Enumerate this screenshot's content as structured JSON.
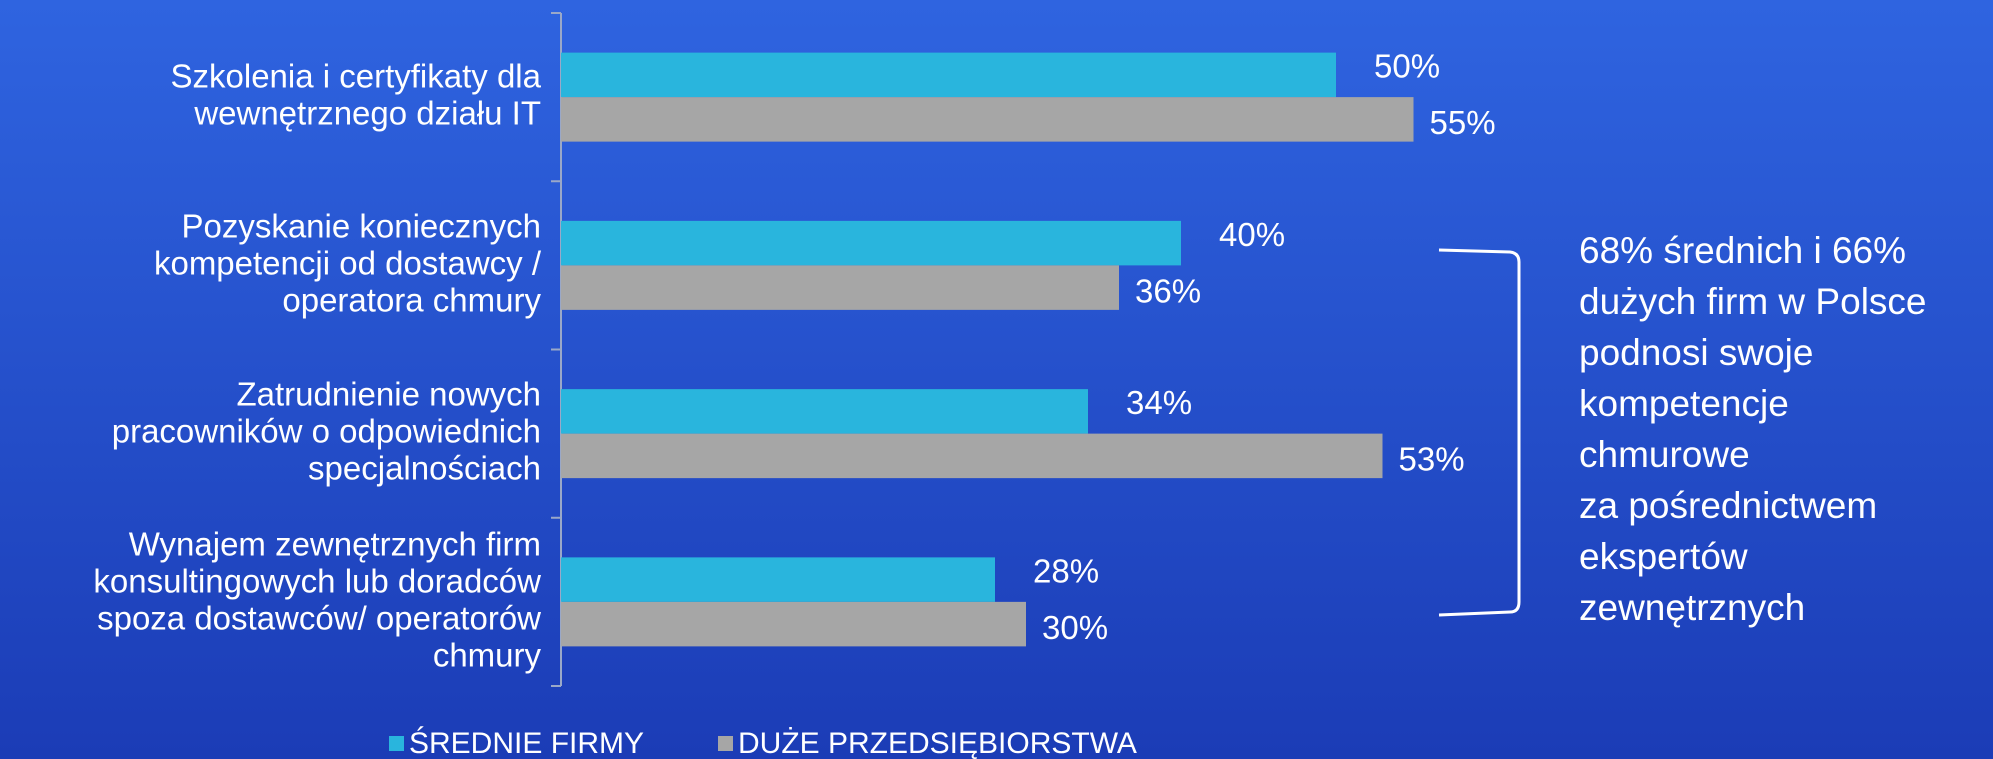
{
  "chart_data": {
    "type": "bar",
    "orientation": "horizontal",
    "categories": [
      "Szkolenia i certyfikaty dla\nwewnętrznego działu IT",
      "Pozyskanie koniecznych\nkompetencji od dostawcy /\noperatora chmury",
      "Zatrudnienie nowych\npracowników o odpowiednich\nspecjalnościach",
      "Wynajem zewnętrznych firm\nkonsultingowych lub doradców\nspoza dostawców/ operatorów\nchmury"
    ],
    "series": [
      {
        "name": "ŚREDNIE FIRMY",
        "color": "#29b5dd",
        "values": [
          50,
          40,
          34,
          28
        ],
        "value_labels": [
          "50%",
          "40%",
          "34%",
          "28%"
        ]
      },
      {
        "name": "DUŻE PRZEDSIĘBIORSTWA",
        "color": "#a6a6a6",
        "values": [
          55,
          36,
          53,
          30
        ],
        "value_labels": [
          "55%",
          "36%",
          "53%",
          "30%"
        ]
      }
    ],
    "legend": "bottom",
    "annotation": [
      "68% średnich i 66%",
      "dużych firm w Polsce",
      "podnosi swoje",
      "kompetencje",
      "chmurowe",
      "za pośrednictwem",
      "ekspertów",
      "zewnętrznych"
    ]
  }
}
